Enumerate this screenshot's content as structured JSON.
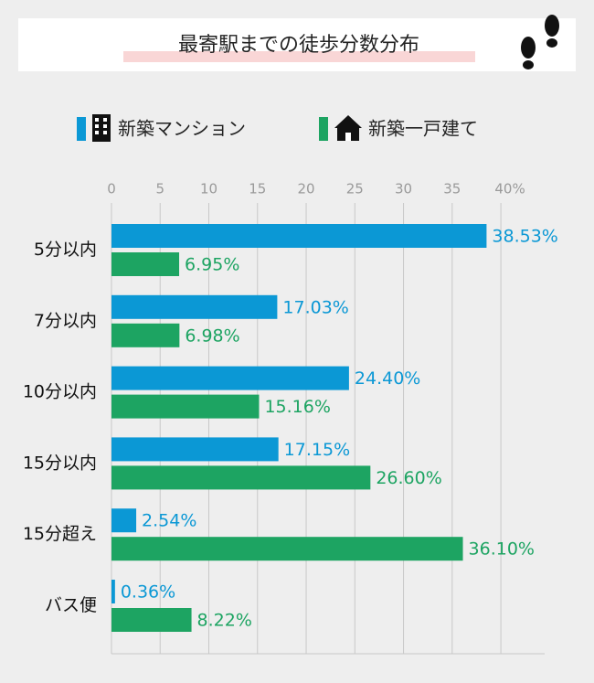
{
  "chart_data": {
    "type": "bar",
    "orientation": "horizontal",
    "title": "最寄駅までの徒歩分数分布",
    "categories": [
      "5分以内",
      "7分以内",
      "10分以内",
      "15分以内",
      "15分超え",
      "バス便"
    ],
    "series": [
      {
        "name": "新築マンション",
        "color": "#0b98d5",
        "values": [
          38.53,
          17.03,
          24.4,
          17.15,
          2.54,
          0.36
        ],
        "value_labels": [
          "38.53%",
          "17.03%",
          "24.40%",
          "17.15%",
          "2.54%",
          "0.36%"
        ]
      },
      {
        "name": "新築一戸建て",
        "color": "#1da462",
        "values": [
          6.95,
          6.98,
          15.16,
          26.6,
          36.1,
          8.22
        ],
        "value_labels": [
          "6.95%",
          "6.98%",
          "15.16%",
          "26.60%",
          "36.10%",
          "8.22%"
        ]
      }
    ],
    "xlim": [
      0,
      44.5
    ],
    "xticks": [
      0,
      5,
      10,
      15,
      20,
      25,
      30,
      35,
      {
        "value": 40,
        "label": "40%"
      }
    ],
    "grid": true
  }
}
